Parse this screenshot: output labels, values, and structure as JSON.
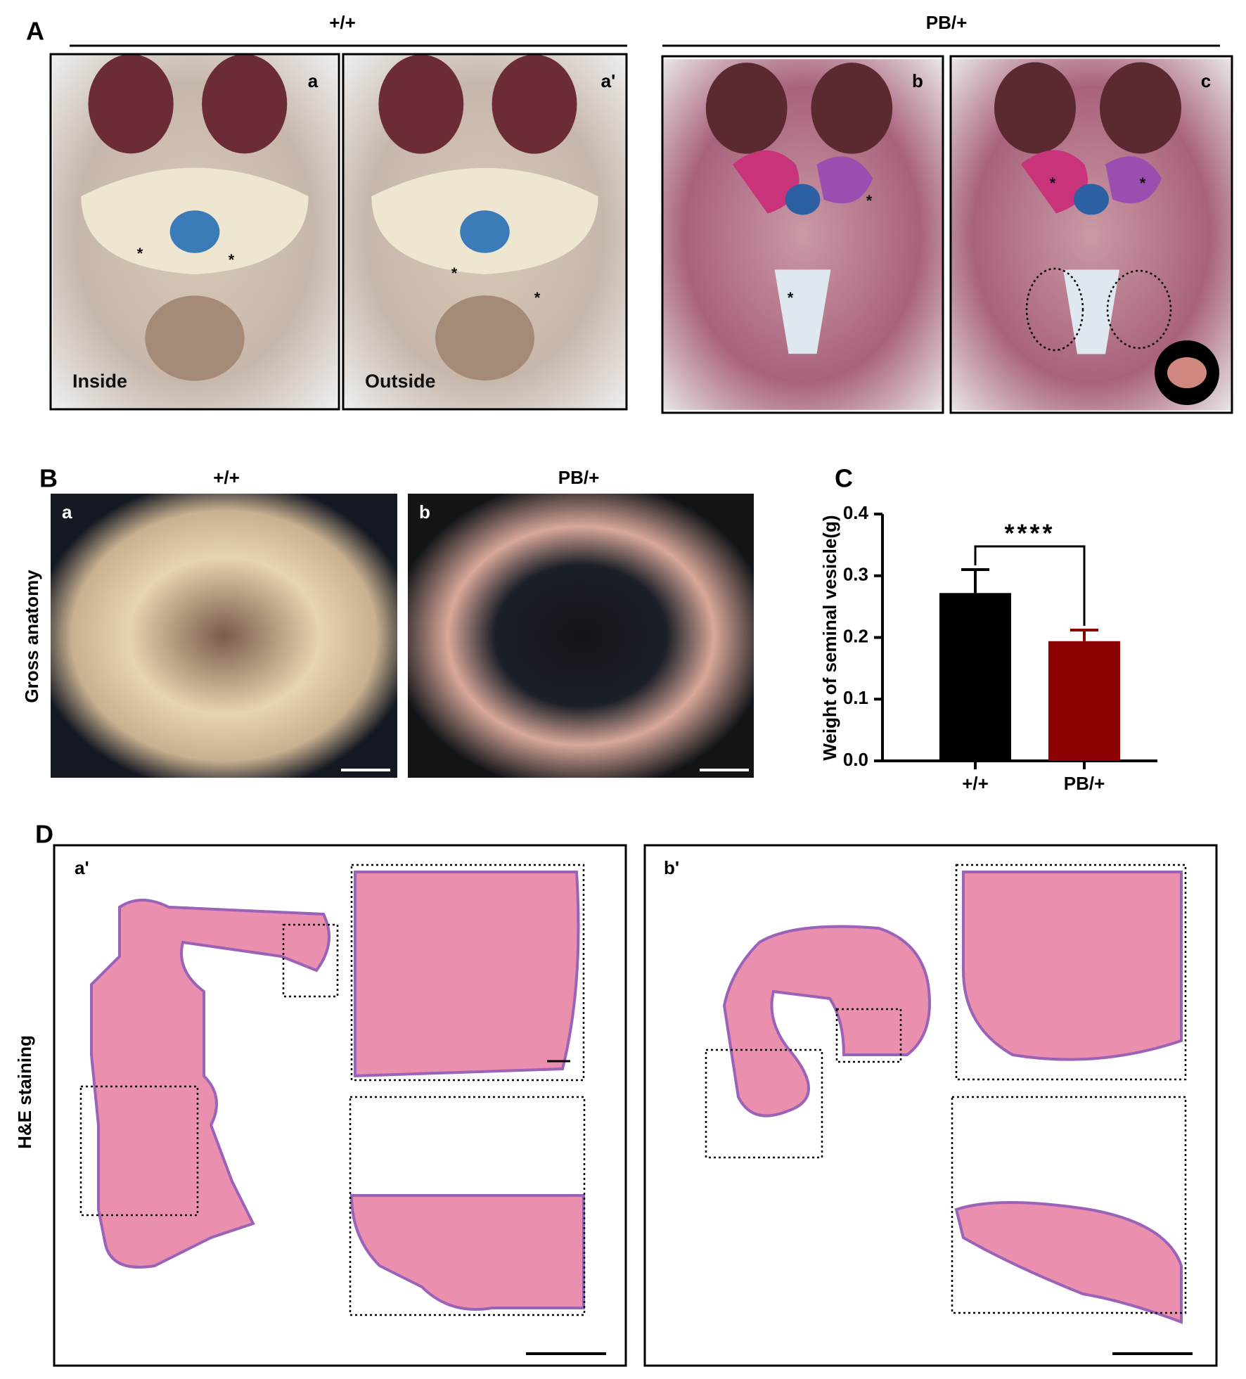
{
  "panel_a": {
    "label": "A",
    "genotypes": [
      "+/+",
      "PB/+"
    ],
    "asterisk": "*",
    "images": [
      {
        "tag": "a",
        "caption": "Inside"
      },
      {
        "tag": "a'",
        "caption": "Outside"
      },
      {
        "tag": "b"
      },
      {
        "tag": "c"
      }
    ]
  },
  "panel_b": {
    "label": "B",
    "row_label": "Gross anatomy",
    "genotypes": [
      "+/+",
      "PB/+"
    ],
    "images": [
      {
        "tag": "a"
      },
      {
        "tag": "b"
      }
    ]
  },
  "chart_data": {
    "type": "bar",
    "panel_label": "C",
    "ylabel": "Weight of seminal vesicle(g)",
    "categories": [
      "+/+",
      "PB/+"
    ],
    "values": [
      0.272,
      0.194
    ],
    "errors": [
      0.038,
      0.018
    ],
    "colors": [
      "#000000",
      "#8b0000"
    ],
    "ylim": [
      0,
      0.4
    ],
    "yticks": [
      {
        "value": 0,
        "label": "0.0"
      },
      0.1,
      0.2,
      0.3,
      0.4
    ],
    "significance": "****"
  },
  "panel_d": {
    "label": "D",
    "row_label": "H&E staining",
    "images": [
      {
        "tag": "a'"
      },
      {
        "tag": "b'"
      }
    ]
  }
}
